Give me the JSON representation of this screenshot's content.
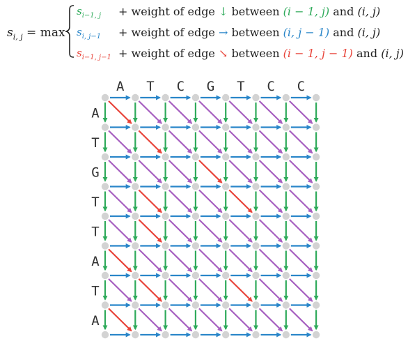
{
  "formula": {
    "lhs_var": "s",
    "lhs_sub": "i, j",
    "lhs_op": " = max",
    "rows": [
      {
        "color": "green",
        "term_base": "s",
        "term_sub": "i−1, j",
        "desc_pre": "+ weight of edge",
        "arrow": "↓",
        "desc_mid": "between",
        "coord_colored": "(i − 1, j)",
        "desc_and": "and",
        "coord_plain": "(i, j)"
      },
      {
        "color": "blue",
        "term_base": "s",
        "term_sub": "i, j−1",
        "desc_pre": "+ weight of edge",
        "arrow": "→",
        "desc_mid": "between",
        "coord_colored": "(i, j − 1)",
        "desc_and": "and",
        "coord_plain": "(i, j)"
      },
      {
        "color": "red",
        "term_base": "s",
        "term_sub": "i−1, j−1",
        "desc_pre": "+ weight of edge",
        "arrow": "↘",
        "desc_mid": "between",
        "coord_colored": "(i − 1, j − 1)",
        "desc_and": "and",
        "coord_plain": "(i, j)"
      }
    ]
  },
  "grid": {
    "top_sequence": [
      "A",
      "T",
      "C",
      "G",
      "T",
      "C",
      "C"
    ],
    "left_sequence": [
      "A",
      "T",
      "G",
      "T",
      "T",
      "A",
      "T",
      "A"
    ],
    "colors": {
      "down": "#2eaa5a",
      "right": "#2a86c9",
      "diag": "#a65fc0",
      "match": "#e8443a",
      "node": "#d3d3d3"
    },
    "match_cells": [
      [
        0,
        0
      ],
      [
        1,
        1
      ],
      [
        2,
        3
      ],
      [
        3,
        1
      ],
      [
        3,
        4
      ],
      [
        4,
        1
      ],
      [
        5,
        0
      ],
      [
        6,
        1
      ],
      [
        6,
        4
      ],
      [
        7,
        0
      ]
    ]
  }
}
